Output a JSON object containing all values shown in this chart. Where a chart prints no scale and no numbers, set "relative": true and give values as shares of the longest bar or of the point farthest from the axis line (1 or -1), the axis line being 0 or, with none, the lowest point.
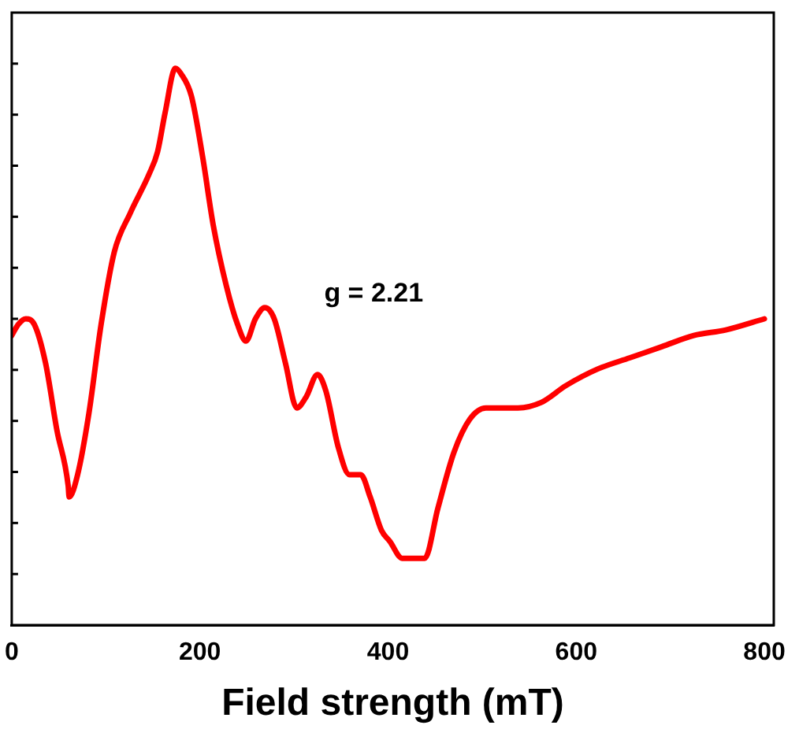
{
  "chart_data": {
    "type": "line",
    "xlabel": "Field strength (mT)",
    "relative": true,
    "tick_labels": "x",
    "grid": false,
    "legend": false,
    "marker": "none",
    "line_style": "solid",
    "xlim": [
      0,
      810
    ],
    "xticks": [
      0,
      200,
      400,
      600,
      800
    ],
    "annotations": [
      "g = 2.21"
    ],
    "series": [
      {
        "color": "#ff0000",
        "x": [
          0,
          7,
          15,
          24,
          36,
          48,
          60,
          61,
          70,
          82,
          95,
          109,
          126,
          146,
          155,
          163,
          174,
          180,
          191,
          203,
          214,
          228,
          240,
          249,
          259,
          269,
          279,
          291,
          303,
          313,
          325,
          334,
          347,
          359,
          371,
          381,
          393,
          402,
          415,
          427,
          439,
          453,
          470,
          487,
          504,
          538,
          563,
          589,
          623,
          657,
          691,
          725,
          759,
          800
        ],
        "values": [
          0.52,
          0.54,
          0.55,
          0.54,
          0.47,
          0.35,
          0.25,
          0.23,
          0.27,
          0.38,
          0.54,
          0.67,
          0.74,
          0.81,
          0.85,
          0.92,
          1.0,
          0.99,
          0.95,
          0.84,
          0.72,
          0.61,
          0.54,
          0.51,
          0.55,
          0.57,
          0.55,
          0.47,
          0.39,
          0.41,
          0.45,
          0.42,
          0.32,
          0.27,
          0.27,
          0.23,
          0.17,
          0.15,
          0.12,
          0.12,
          0.12,
          0.21,
          0.31,
          0.37,
          0.39,
          0.39,
          0.4,
          0.43,
          0.46,
          0.48,
          0.5,
          0.52,
          0.53,
          0.55
        ]
      }
    ]
  }
}
